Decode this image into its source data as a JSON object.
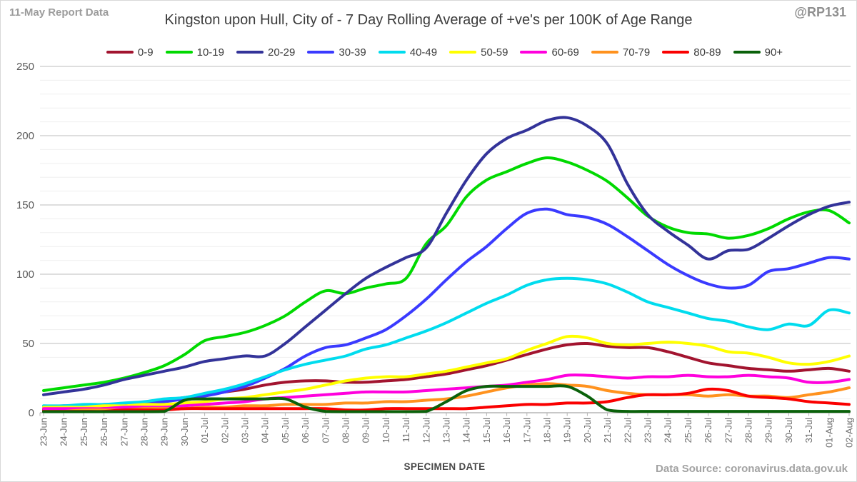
{
  "header": {
    "report_label": "11-May Report Data",
    "handle": "@RP131"
  },
  "footer": {
    "data_source": "Data Source: coronavirus.data.gov.uk"
  },
  "chart_data": {
    "type": "line",
    "title": "Kingston upon Hull, City of - 7 Day Rolling Average of +ve's per 100K of Age Range",
    "xlabel": "SPECIMEN DATE",
    "ylabel": "",
    "ylim": [
      0,
      250
    ],
    "yticks": [
      0,
      50,
      100,
      150,
      200,
      250
    ],
    "ytick_minor_step": 10,
    "grid": true,
    "legend_position": "top",
    "categories": [
      "23-Jun",
      "24-Jun",
      "25-Jun",
      "26-Jun",
      "27-Jun",
      "28-Jun",
      "29-Jun",
      "30-Jun",
      "01-Jul",
      "02-Jul",
      "03-Jul",
      "04-Jul",
      "05-Jul",
      "06-Jul",
      "07-Jul",
      "08-Jul",
      "09-Jul",
      "10-Jul",
      "11-Jul",
      "12-Jul",
      "13-Jul",
      "14-Jul",
      "15-Jul",
      "16-Jul",
      "17-Jul",
      "18-Jul",
      "19-Jul",
      "20-Jul",
      "21-Jul",
      "22-Jul",
      "23-Jul",
      "24-Jul",
      "25-Jul",
      "26-Jul",
      "27-Jul",
      "28-Jul",
      "29-Jul",
      "30-Jul",
      "31-Jul",
      "01-Aug",
      "02-Aug"
    ],
    "series": [
      {
        "name": "0-9",
        "color": "#a2142f",
        "values": [
          2,
          3,
          3,
          4,
          5,
          7,
          9,
          11,
          13,
          15,
          17,
          20,
          22,
          23,
          23,
          22,
          22,
          23,
          24,
          26,
          28,
          31,
          34,
          38,
          42,
          46,
          49,
          50,
          48,
          47,
          47,
          44,
          40,
          36,
          34,
          32,
          31,
          30,
          31,
          32,
          30
        ]
      },
      {
        "name": "10-19",
        "color": "#00d900",
        "values": [
          16,
          18,
          20,
          22,
          25,
          29,
          34,
          42,
          52,
          55,
          58,
          63,
          70,
          80,
          88,
          86,
          90,
          93,
          97,
          122,
          135,
          156,
          168,
          174,
          180,
          184,
          181,
          175,
          167,
          155,
          142,
          134,
          130,
          129,
          126,
          128,
          133,
          140,
          145,
          146,
          137
        ]
      },
      {
        "name": "20-29",
        "color": "#333399",
        "values": [
          13,
          15,
          17,
          20,
          24,
          27,
          30,
          33,
          37,
          39,
          41,
          41,
          50,
          62,
          74,
          86,
          97,
          105,
          112,
          119,
          144,
          168,
          187,
          198,
          204,
          211,
          213,
          207,
          194,
          165,
          143,
          131,
          121,
          111,
          117,
          118,
          126,
          135,
          143,
          149,
          152
        ]
      },
      {
        "name": "30-39",
        "color": "#3a3aff",
        "values": [
          4,
          5,
          5,
          6,
          6,
          7,
          8,
          10,
          12,
          15,
          19,
          25,
          32,
          41,
          47,
          49,
          54,
          60,
          70,
          82,
          96,
          109,
          120,
          133,
          144,
          147,
          143,
          141,
          136,
          127,
          117,
          107,
          99,
          93,
          90,
          92,
          102,
          104,
          108,
          112,
          111
        ]
      },
      {
        "name": "40-49",
        "color": "#00dcee",
        "values": [
          5,
          5,
          6,
          6,
          7,
          8,
          10,
          11,
          14,
          17,
          21,
          26,
          31,
          35,
          38,
          41,
          46,
          49,
          54,
          59,
          65,
          72,
          79,
          85,
          92,
          96,
          97,
          96,
          93,
          87,
          80,
          76,
          72,
          68,
          66,
          62,
          60,
          64,
          63,
          74,
          72
        ]
      },
      {
        "name": "50-59",
        "color": "#ffff00",
        "values": [
          4,
          4,
          4,
          5,
          5,
          6,
          6,
          7,
          8,
          10,
          11,
          13,
          15,
          17,
          20,
          23,
          25,
          26,
          26,
          28,
          30,
          33,
          36,
          39,
          45,
          50,
          55,
          54,
          50,
          49,
          50,
          51,
          50,
          48,
          44,
          43,
          40,
          36,
          35,
          37,
          41
        ]
      },
      {
        "name": "60-69",
        "color": "#ff00dd",
        "values": [
          3,
          3,
          3,
          3,
          4,
          4,
          4,
          5,
          6,
          7,
          8,
          10,
          11,
          12,
          13,
          14,
          15,
          15,
          15,
          16,
          17,
          18,
          19,
          20,
          22,
          24,
          27,
          27,
          26,
          25,
          26,
          26,
          27,
          26,
          26,
          27,
          26,
          25,
          22,
          22,
          24
        ]
      },
      {
        "name": "70-79",
        "color": "#ff921e",
        "values": [
          1,
          1,
          2,
          2,
          2,
          3,
          3,
          3,
          4,
          4,
          5,
          5,
          6,
          6,
          6,
          7,
          7,
          8,
          8,
          9,
          10,
          12,
          15,
          18,
          20,
          21,
          20,
          19,
          16,
          14,
          13,
          13,
          13,
          12,
          13,
          12,
          12,
          11,
          13,
          15,
          18
        ]
      },
      {
        "name": "80-89",
        "color": "#fa0000",
        "values": [
          1,
          1,
          1,
          1,
          2,
          2,
          2,
          3,
          3,
          3,
          3,
          3,
          3,
          3,
          3,
          2,
          2,
          3,
          3,
          3,
          3,
          3,
          4,
          5,
          6,
          6,
          7,
          7,
          8,
          11,
          13,
          13,
          14,
          17,
          16,
          12,
          11,
          10,
          8,
          7,
          6
        ]
      },
      {
        "name": "90+",
        "color": "#0a610a",
        "values": [
          0,
          0,
          0,
          0,
          0,
          0,
          1,
          9,
          10,
          10,
          10,
          10,
          10,
          4,
          1,
          0,
          0,
          0,
          0,
          1,
          8,
          16,
          19,
          19,
          19,
          19,
          19,
          12,
          2,
          1,
          1,
          1,
          1,
          1,
          1,
          1,
          1,
          1,
          1,
          1,
          1
        ]
      }
    ]
  }
}
